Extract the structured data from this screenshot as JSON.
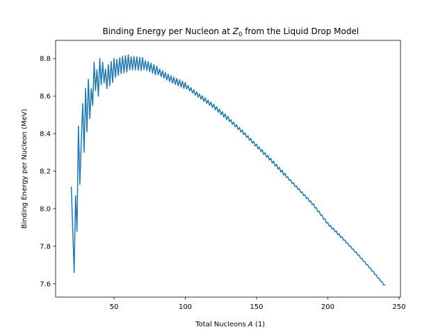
{
  "chart_data": {
    "type": "line",
    "title": [
      "Binding Energy per Nucleon at ",
      "Z",
      "0",
      " from the Liquid Drop Model"
    ],
    "xlabel": [
      "Total Nucleons ",
      "A",
      " (1)"
    ],
    "ylabel": "Binding Energy per Nucleon (MeV)",
    "color": "#1f77b4",
    "xlim": [
      9,
      251
    ],
    "xticks": [
      50,
      100,
      150,
      200,
      250
    ],
    "ylim": [
      7.529,
      8.897
    ],
    "yticks": [
      7.6,
      7.8,
      {
        "value": 8,
        "label": "8.0"
      },
      8.2,
      8.4,
      8.6,
      8.8
    ],
    "x": [
      20,
      21,
      22,
      23,
      24,
      25,
      26,
      27,
      28,
      29,
      30,
      31,
      32,
      33,
      34,
      35,
      36,
      37,
      38,
      39,
      40,
      41,
      42,
      43,
      44,
      45,
      46,
      47,
      48,
      49,
      50,
      51,
      52,
      53,
      54,
      55,
      56,
      57,
      58,
      59,
      60,
      61,
      62,
      63,
      64,
      65,
      66,
      67,
      68,
      69,
      70,
      71,
      72,
      73,
      74,
      75,
      76,
      77,
      78,
      79,
      80,
      81,
      82,
      83,
      84,
      85,
      86,
      87,
      88,
      89,
      90,
      91,
      92,
      93,
      94,
      95,
      96,
      97,
      98,
      99,
      100,
      101,
      102,
      103,
      104,
      105,
      106,
      107,
      108,
      109,
      110,
      111,
      112,
      113,
      114,
      115,
      116,
      117,
      118,
      119,
      120,
      121,
      122,
      123,
      124,
      125,
      126,
      127,
      128,
      129,
      130,
      131,
      132,
      133,
      134,
      135,
      136,
      137,
      138,
      139,
      140,
      141,
      142,
      143,
      144,
      145,
      146,
      147,
      148,
      149,
      150,
      151,
      152,
      153,
      154,
      155,
      156,
      157,
      158,
      159,
      160,
      161,
      162,
      163,
      164,
      165,
      166,
      167,
      168,
      169,
      170,
      171,
      172,
      173,
      174,
      175,
      176,
      177,
      178,
      179,
      180,
      181,
      182,
      183,
      184,
      185,
      186,
      187,
      188,
      189,
      190,
      191,
      192,
      193,
      194,
      195,
      196,
      197,
      198,
      199,
      200,
      201,
      202,
      203,
      204,
      205,
      206,
      207,
      208,
      209,
      210,
      211,
      212,
      213,
      214,
      215,
      216,
      217,
      218,
      219,
      220,
      221,
      222,
      223,
      224,
      225,
      226,
      227,
      228,
      229,
      230,
      231,
      232,
      233,
      234,
      235,
      236,
      237,
      238,
      239,
      240
    ],
    "values": [
      8.115,
      7.89,
      7.66,
      8.07,
      7.88,
      8.44,
      8.13,
      8.36,
      8.56,
      8.3,
      8.64,
      8.41,
      8.69,
      8.48,
      8.64,
      8.55,
      8.78,
      8.63,
      8.74,
      8.6,
      8.8,
      8.66,
      8.78,
      8.67,
      8.744,
      8.64,
      8.768,
      8.656,
      8.784,
      8.672,
      8.8,
      8.7,
      8.795,
      8.71,
      8.805,
      8.72,
      8.812,
      8.724,
      8.816,
      8.728,
      8.82,
      8.74,
      8.81,
      8.74,
      8.81,
      8.74,
      8.809,
      8.738,
      8.807,
      8.736,
      8.805,
      8.742,
      8.789,
      8.736,
      8.783,
      8.73,
      8.776,
      8.722,
      8.768,
      8.714,
      8.76,
      8.713,
      8.744,
      8.704,
      8.735,
      8.695,
      8.726,
      8.686,
      8.717,
      8.677,
      8.708,
      8.669,
      8.701,
      8.662,
      8.694,
      8.655,
      8.687,
      8.648,
      8.68,
      8.641,
      8.673,
      8.638,
      8.656,
      8.627,
      8.645,
      8.616,
      8.634,
      8.605,
      8.623,
      8.594,
      8.612,
      8.583,
      8.601,
      8.572,
      8.59,
      8.561,
      8.579,
      8.55,
      8.568,
      8.539,
      8.557,
      8.527,
      8.544,
      8.514,
      8.531,
      8.501,
      8.518,
      8.488,
      8.505,
      8.475,
      8.492,
      8.464,
      8.475,
      8.45,
      8.461,
      8.436,
      8.447,
      8.422,
      8.433,
      8.408,
      8.419,
      8.394,
      8.404,
      8.379,
      8.389,
      8.364,
      8.374,
      8.349,
      8.359,
      8.334,
      8.344,
      8.319,
      8.329,
      8.304,
      8.314,
      8.289,
      8.299,
      8.274,
      8.284,
      8.259,
      8.269,
      8.243,
      8.253,
      8.227,
      8.237,
      8.211,
      8.221,
      8.195,
      8.205,
      8.179,
      8.189,
      8.166,
      8.17,
      8.15,
      8.154,
      8.134,
      8.138,
      8.118,
      8.122,
      8.102,
      8.106,
      8.086,
      8.09,
      8.07,
      8.074,
      8.054,
      8.058,
      8.038,
      8.042,
      8.022,
      8.026,
      8.004,
      8.006,
      7.984,
      7.986,
      7.964,
      7.966,
      7.944,
      7.946,
      7.924,
      7.926,
      7.907,
      7.911,
      7.892,
      7.896,
      7.877,
      7.881,
      7.862,
      7.866,
      7.847,
      7.851,
      7.833,
      7.833,
      7.817,
      7.817,
      7.801,
      7.801,
      7.785,
      7.785,
      7.769,
      7.769,
      7.753,
      7.752,
      7.736,
      7.735,
      7.719,
      7.718,
      7.702,
      7.701,
      7.685,
      7.684,
      7.667,
      7.666,
      7.649,
      7.648,
      7.631,
      7.63,
      7.613,
      7.612,
      7.595,
      7.594
    ]
  }
}
